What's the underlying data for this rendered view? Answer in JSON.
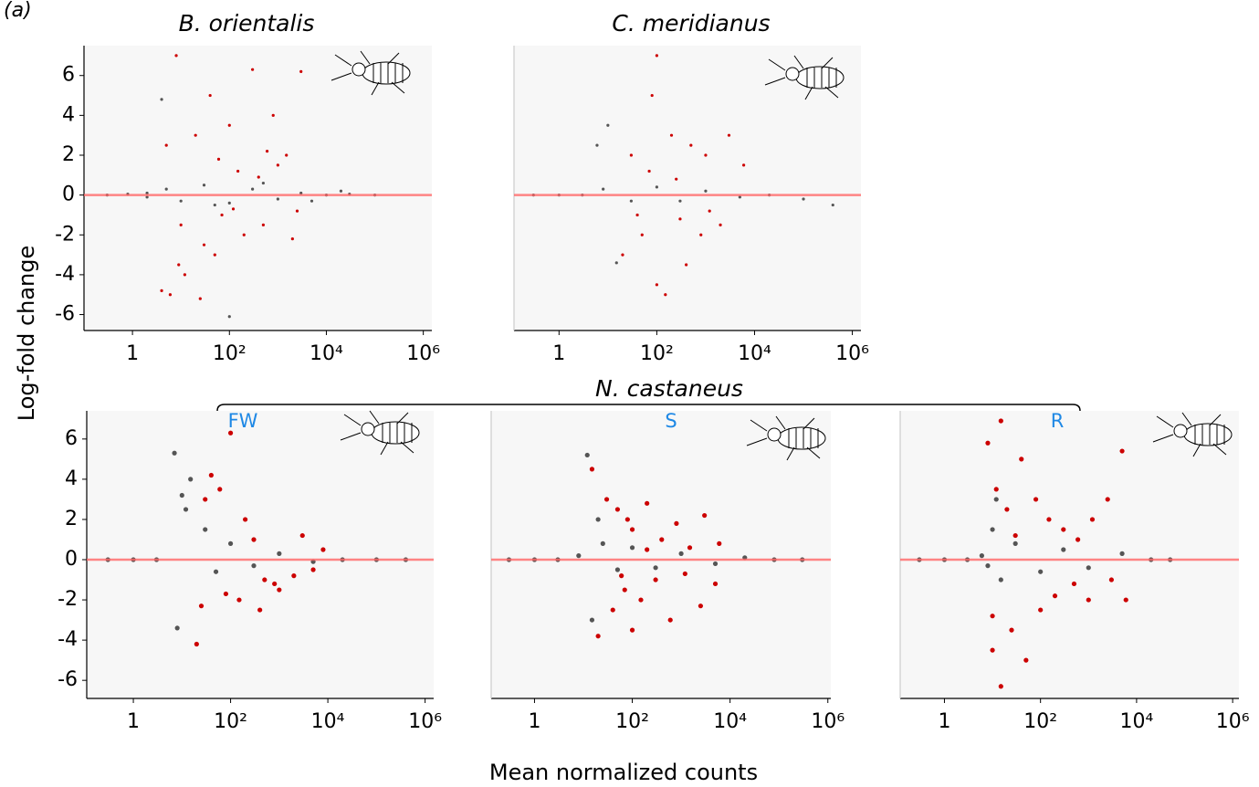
{
  "figure": {
    "label": "(a)",
    "ylabel": "Log-fold change",
    "xlabel": "Mean normalized counts",
    "group_title": "N. castaneus"
  },
  "chart_data": [
    {
      "type": "scatter",
      "title": "B. orientalis",
      "xscale": "log",
      "xlim": [
        0.1,
        1500000
      ],
      "ylim": [
        -6.8,
        7.5
      ],
      "xticks": [
        1,
        {
          "value": 100,
          "label": "10²"
        },
        {
          "value": 10000,
          "label": "10⁴"
        },
        {
          "value": 1000000,
          "label": "10⁶"
        }
      ],
      "yticks": [
        -6,
        -4,
        -2,
        0,
        2,
        4,
        6
      ],
      "hline": 0,
      "series": [
        {
          "color": "#555555",
          "x": [
            0.3,
            0.8,
            2,
            5,
            10,
            30,
            100,
            300,
            1000,
            3000,
            10000,
            30000,
            100000,
            4,
            50,
            500,
            5000,
            20000,
            100,
            2
          ],
          "values": [
            0,
            0.05,
            -0.1,
            0.3,
            -0.3,
            0.5,
            -0.4,
            0.3,
            -0.2,
            0.1,
            0,
            0.05,
            0,
            4.8,
            -0.5,
            0.6,
            -0.3,
            0.2,
            -6.1,
            0.1
          ]
        },
        {
          "color": "#cc0000",
          "x": [
            8,
            20,
            5,
            40,
            100,
            300,
            800,
            1500,
            3000,
            200,
            50,
            12,
            6,
            10,
            30,
            70,
            150,
            500,
            1000,
            2500,
            400,
            60,
            25,
            9,
            4,
            120,
            600,
            2000
          ],
          "values": [
            7,
            3,
            2.5,
            5,
            3.5,
            6.3,
            4,
            2,
            6.2,
            -2,
            -3,
            -4,
            -5,
            -1.5,
            -2.5,
            -1,
            1.2,
            -1.5,
            1.5,
            -0.8,
            0.9,
            1.8,
            -5.2,
            -3.5,
            -4.8,
            -0.7,
            2.2,
            -2.2
          ]
        }
      ]
    },
    {
      "type": "scatter",
      "title": "C. meridianus",
      "xscale": "log",
      "xlim": [
        0.12,
        1500000
      ],
      "ylim": [
        -6.8,
        7.5
      ],
      "xticks": [
        1,
        {
          "value": 100,
          "label": "10²"
        },
        {
          "value": 10000,
          "label": "10⁴"
        },
        {
          "value": 1000000,
          "label": "10⁶"
        }
      ],
      "hline": 0,
      "series": [
        {
          "color": "#555555",
          "x": [
            0.3,
            1,
            3,
            8,
            10,
            30,
            100,
            300,
            1000,
            5000,
            20000,
            100000,
            400000,
            15,
            6
          ],
          "values": [
            0,
            0,
            0,
            0.3,
            3.5,
            -0.3,
            0.4,
            -0.3,
            0.2,
            -0.1,
            0,
            -0.2,
            -0.5,
            -3.4,
            2.5
          ]
        },
        {
          "color": "#cc0000",
          "x": [
            100,
            30,
            80,
            200,
            500,
            1000,
            3000,
            6000,
            50,
            20,
            150,
            400,
            800,
            2000,
            40,
            100,
            300,
            1200,
            70,
            250
          ],
          "values": [
            7,
            2,
            5,
            3,
            2.5,
            2,
            3,
            1.5,
            -2,
            -3,
            -5,
            -3.5,
            -2,
            -1.5,
            -1,
            -4.5,
            -1.2,
            -0.8,
            1.2,
            0.8
          ]
        }
      ]
    },
    {
      "type": "scatter",
      "title": "FW",
      "xscale": "log",
      "xlim": [
        0.11,
        1500000
      ],
      "ylim": [
        -6.9,
        7.4
      ],
      "xticks": [
        1,
        {
          "value": 100,
          "label": "10²"
        },
        {
          "value": 10000,
          "label": "10⁴"
        },
        {
          "value": 1000000,
          "label": "10⁶"
        }
      ],
      "yticks": [
        -6,
        -4,
        -2,
        0,
        2,
        4,
        6
      ],
      "hline": 0,
      "series": [
        {
          "color": "#555555",
          "x": [
            0.3,
            1,
            3,
            7,
            10,
            12,
            15,
            30,
            100,
            300,
            1000,
            5000,
            20000,
            100000,
            400000,
            8,
            50
          ],
          "values": [
            0,
            0,
            0,
            5.3,
            3.2,
            2.5,
            4,
            1.5,
            0.8,
            -0.3,
            0.3,
            -0.1,
            0,
            0,
            0,
            -3.4,
            -0.6
          ]
        },
        {
          "color": "#cc0000",
          "x": [
            100,
            30,
            40,
            60,
            200,
            300,
            500,
            1000,
            3000,
            8000,
            20,
            150,
            400,
            800,
            2000,
            5000,
            80,
            25
          ],
          "values": [
            6.3,
            3,
            4.2,
            3.5,
            2,
            1,
            -1,
            -1.5,
            1.2,
            0.5,
            -4.2,
            -2,
            -2.5,
            -1.2,
            -0.8,
            -0.5,
            -1.7,
            -2.3
          ]
        }
      ]
    },
    {
      "type": "scatter",
      "title": "S",
      "xscale": "log",
      "xlim": [
        0.13,
        1150000
      ],
      "ylim": [
        -6.9,
        7.4
      ],
      "xticks": [
        1,
        {
          "value": 100,
          "label": "10²"
        },
        {
          "value": 10000,
          "label": "10⁴"
        },
        {
          "value": 1000000,
          "label": "10⁶"
        }
      ],
      "hline": 0,
      "series": [
        {
          "color": "#555555",
          "x": [
            0.3,
            1,
            3,
            8,
            12,
            20,
            50,
            100,
            300,
            1000,
            5000,
            20000,
            80000,
            300000,
            15,
            25
          ],
          "values": [
            0,
            0,
            0,
            0.2,
            5.2,
            2,
            -0.5,
            0.6,
            -0.4,
            0.3,
            -0.2,
            0.1,
            0,
            0,
            -3,
            0.8
          ]
        },
        {
          "color": "#cc0000",
          "x": [
            15,
            30,
            50,
            80,
            100,
            200,
            400,
            800,
            1500,
            3000,
            6000,
            20,
            40,
            70,
            150,
            300,
            600,
            1200,
            2500,
            5000,
            100,
            60,
            200
          ],
          "values": [
            4.5,
            3,
            2.5,
            2,
            1.5,
            2.8,
            1,
            1.8,
            0.6,
            2.2,
            0.8,
            -3.8,
            -2.5,
            -1.5,
            -2,
            -1,
            -3,
            -0.7,
            -2.3,
            -1.2,
            -3.5,
            -0.8,
            0.5
          ]
        }
      ]
    },
    {
      "type": "scatter",
      "title": "R",
      "xscale": "log",
      "xlim": [
        0.12,
        1350000
      ],
      "ylim": [
        -6.9,
        7.4
      ],
      "xticks": [
        1,
        {
          "value": 100,
          "label": "10²"
        },
        {
          "value": 10000,
          "label": "10⁴"
        },
        {
          "value": 1000000,
          "label": "10⁶"
        }
      ],
      "hline": 0,
      "series": [
        {
          "color": "#555555",
          "x": [
            0.3,
            1,
            3,
            6,
            10,
            15,
            30,
            100,
            300,
            1000,
            5000,
            20000,
            50000,
            8,
            12
          ],
          "values": [
            0,
            0,
            0,
            0.2,
            1.5,
            -1,
            0.8,
            -0.6,
            0.5,
            -0.4,
            0.3,
            0,
            0,
            -0.3,
            3
          ]
        },
        {
          "color": "#cc0000",
          "x": [
            8,
            12,
            20,
            40,
            80,
            150,
            300,
            600,
            1200,
            2500,
            5000,
            10,
            15,
            25,
            50,
            100,
            200,
            500,
            1000,
            3000,
            15,
            30,
            6000,
            10
          ],
          "values": [
            5.8,
            3.5,
            2.5,
            5,
            3,
            2,
            1.5,
            1,
            2,
            3,
            5.4,
            -4.5,
            -6.3,
            -3.5,
            -5,
            -2.5,
            -1.8,
            -1.2,
            -2,
            -1,
            6.9,
            1.2,
            -2,
            -2.8
          ]
        }
      ]
    }
  ]
}
